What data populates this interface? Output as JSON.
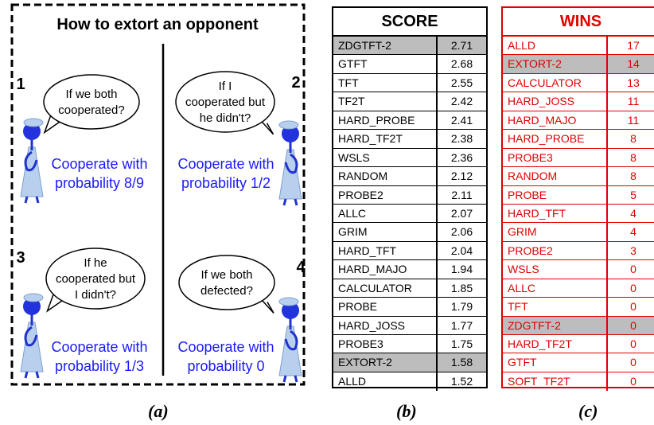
{
  "panel_a": {
    "title": "How to extort an opponent",
    "quadrants": [
      {
        "number": "1",
        "question": [
          "If we both",
          "cooperated?"
        ],
        "answer": [
          "Cooperate with",
          "probability 8/9"
        ]
      },
      {
        "number": "2",
        "question": [
          "If I",
          "cooperated but",
          "he didn't?"
        ],
        "answer": [
          "Cooperate with",
          "probability 1/2"
        ]
      },
      {
        "number": "3",
        "question": [
          "If he",
          "cooperated but",
          "I didn't?"
        ],
        "answer": [
          "Cooperate with",
          "probability 1/3"
        ]
      },
      {
        "number": "4",
        "question": [
          "If we both",
          "defected?"
        ],
        "answer": [
          "Cooperate with",
          "probability 0"
        ]
      }
    ]
  },
  "score_table": {
    "header": "SCORE",
    "rows": [
      {
        "name": "ZDGTFT-2",
        "value": 2.71,
        "highlight": true
      },
      {
        "name": "GTFT",
        "value": 2.68
      },
      {
        "name": "TFT",
        "value": 2.55
      },
      {
        "name": "TF2T",
        "value": 2.42
      },
      {
        "name": "HARD_PROBE",
        "value": 2.41
      },
      {
        "name": "HARD_TF2T",
        "value": 2.38
      },
      {
        "name": "WSLS",
        "value": 2.36
      },
      {
        "name": "RANDOM",
        "value": 2.12
      },
      {
        "name": "PROBE2",
        "value": 2.11
      },
      {
        "name": "ALLC",
        "value": 2.07
      },
      {
        "name": "GRIM",
        "value": 2.06
      },
      {
        "name": "HARD_TFT",
        "value": 2.04
      },
      {
        "name": "HARD_MAJO",
        "value": 1.94
      },
      {
        "name": "CALCULATOR",
        "value": 1.85
      },
      {
        "name": "PROBE",
        "value": 1.79
      },
      {
        "name": "HARD_JOSS",
        "value": 1.77
      },
      {
        "name": "PROBE3",
        "value": 1.75
      },
      {
        "name": "EXTORT-2",
        "value": 1.58,
        "highlight": true
      },
      {
        "name": "ALLD",
        "value": 1.52
      }
    ]
  },
  "wins_table": {
    "header": "WINS",
    "rows": [
      {
        "name": "ALLD",
        "value": 17
      },
      {
        "name": "EXTORT-2",
        "value": 14,
        "highlight": true
      },
      {
        "name": "CALCULATOR",
        "value": 13
      },
      {
        "name": "HARD_JOSS",
        "value": 11
      },
      {
        "name": "HARD_MAJO",
        "value": 11
      },
      {
        "name": "HARD_PROBE",
        "value": 8
      },
      {
        "name": "PROBE3",
        "value": 8
      },
      {
        "name": "RANDOM",
        "value": 8
      },
      {
        "name": "PROBE",
        "value": 5
      },
      {
        "name": "HARD_TFT",
        "value": 4
      },
      {
        "name": "GRIM",
        "value": 4
      },
      {
        "name": "PROBE2",
        "value": 3
      },
      {
        "name": "WSLS",
        "value": 0
      },
      {
        "name": "ALLC",
        "value": 0
      },
      {
        "name": "TFT",
        "value": 0
      },
      {
        "name": "ZDGTFT-2",
        "value": 0,
        "highlight": true
      },
      {
        "name": "HARD_TF2T",
        "value": 0
      },
      {
        "name": "GTFT",
        "value": 0
      },
      {
        "name": "SOFT_TF2T",
        "value": 0
      }
    ]
  },
  "captions": [
    "(a)",
    "(b)",
    "(c)"
  ]
}
